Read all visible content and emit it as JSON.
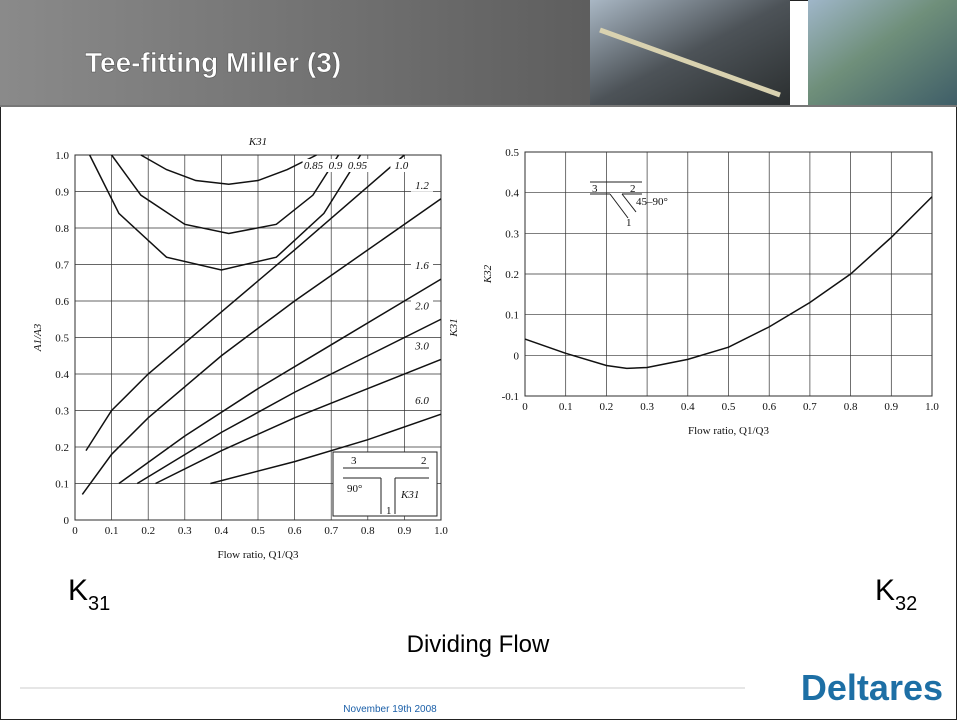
{
  "slide": {
    "title": "Tee-fitting Miller (3)",
    "left_label": {
      "main": "K",
      "sub": "31"
    },
    "right_label": {
      "main": "K",
      "sub": "32"
    },
    "caption": "Dividing Flow",
    "date": "November 19th 2008",
    "logo": "Deltares"
  },
  "chart_data": [
    {
      "type": "line",
      "title": "K31",
      "x_label": "Flow ratio, Q1/Q3",
      "y_label": "A1/A3",
      "y2_label": "K31",
      "xlim": [
        0,
        1
      ],
      "ylim": [
        0,
        1
      ],
      "grid": true,
      "xticks": [
        0,
        0.1,
        0.2,
        0.3,
        0.4,
        0.5,
        0.6,
        0.7,
        0.8,
        0.9,
        {
          "value": 1,
          "label": "1.0"
        }
      ],
      "yticks": [
        0,
        0.1,
        0.2,
        0.3,
        0.4,
        0.5,
        0.6,
        0.7,
        0.8,
        0.9,
        {
          "value": 1,
          "label": "1.0"
        }
      ],
      "color": "#111111",
      "series": [
        {
          "name": "0.85",
          "x": [
            0.18,
            0.25,
            0.33,
            0.42,
            0.5,
            0.58,
            0.66
          ],
          "values": [
            1,
            0.96,
            0.93,
            0.92,
            0.93,
            0.96,
            1
          ]
        },
        {
          "name": "0.9",
          "x": [
            0.1,
            0.18,
            0.3,
            0.42,
            0.55,
            0.65,
            0.72
          ],
          "values": [
            1,
            0.89,
            0.81,
            0.785,
            0.81,
            0.89,
            1
          ]
        },
        {
          "name": "0.95",
          "x": [
            0.04,
            0.12,
            0.25,
            0.4,
            0.55,
            0.68,
            0.78
          ],
          "values": [
            1,
            0.84,
            0.72,
            0.685,
            0.72,
            0.84,
            1
          ]
        },
        {
          "name": "1.0",
          "x": [
            0.03,
            0.1,
            0.2,
            0.4,
            0.6,
            0.9
          ],
          "values": [
            0.19,
            0.3,
            0.4,
            0.57,
            0.74,
            1
          ]
        },
        {
          "name": "1.2",
          "x": [
            0.02,
            0.1,
            0.2,
            0.4,
            0.6,
            0.8,
            1
          ],
          "values": [
            0.07,
            0.18,
            0.28,
            0.45,
            0.6,
            0.74,
            0.88
          ]
        },
        {
          "name": "1.6",
          "x": [
            0.12,
            0.3,
            0.5,
            0.7,
            0.9,
            1
          ],
          "values": [
            0.1,
            0.23,
            0.36,
            0.48,
            0.6,
            0.66
          ]
        },
        {
          "name": "2.0",
          "x": [
            0.17,
            0.4,
            0.6,
            0.8,
            1
          ],
          "values": [
            0.1,
            0.24,
            0.35,
            0.45,
            0.55
          ]
        },
        {
          "name": "3.0",
          "x": [
            0.22,
            0.4,
            0.6,
            0.8,
            1
          ],
          "values": [
            0.1,
            0.19,
            0.28,
            0.36,
            0.44
          ]
        },
        {
          "name": "6.0",
          "x": [
            0.37,
            0.6,
            0.8,
            1
          ],
          "values": [
            0.1,
            0.16,
            0.22,
            0.29
          ]
        }
      ],
      "inset": {
        "branch_in": "3",
        "branch_out": "2",
        "angle": "90°",
        "branch_side": "1",
        "coefficient": "K31"
      }
    },
    {
      "type": "line",
      "x_label": "Flow ratio, Q1/Q3",
      "y_label": "K32",
      "xlim": [
        0,
        1
      ],
      "ylim": [
        -0.1,
        0.5
      ],
      "grid": true,
      "xticks": [
        0,
        0.1,
        0.2,
        0.3,
        0.4,
        0.5,
        0.6,
        0.7,
        0.8,
        0.9,
        {
          "value": 1,
          "label": "1.0"
        }
      ],
      "yticks": [
        -0.1,
        0,
        0.1,
        0.2,
        0.3,
        0.4,
        0.5
      ],
      "color": "#111111",
      "series": [
        {
          "x": [
            0,
            0.1,
            0.2,
            0.25,
            0.3,
            0.4,
            0.5,
            0.6,
            0.7,
            0.8,
            0.9,
            1
          ],
          "values": [
            0.04,
            0.005,
            -0.025,
            -0.032,
            -0.03,
            -0.01,
            0.02,
            0.07,
            0.13,
            0.2,
            0.29,
            0.39
          ]
        }
      ],
      "inset": {
        "branch_in": "3",
        "branch_out": "2",
        "angle": "45–90°",
        "branch_side": "1"
      }
    }
  ]
}
